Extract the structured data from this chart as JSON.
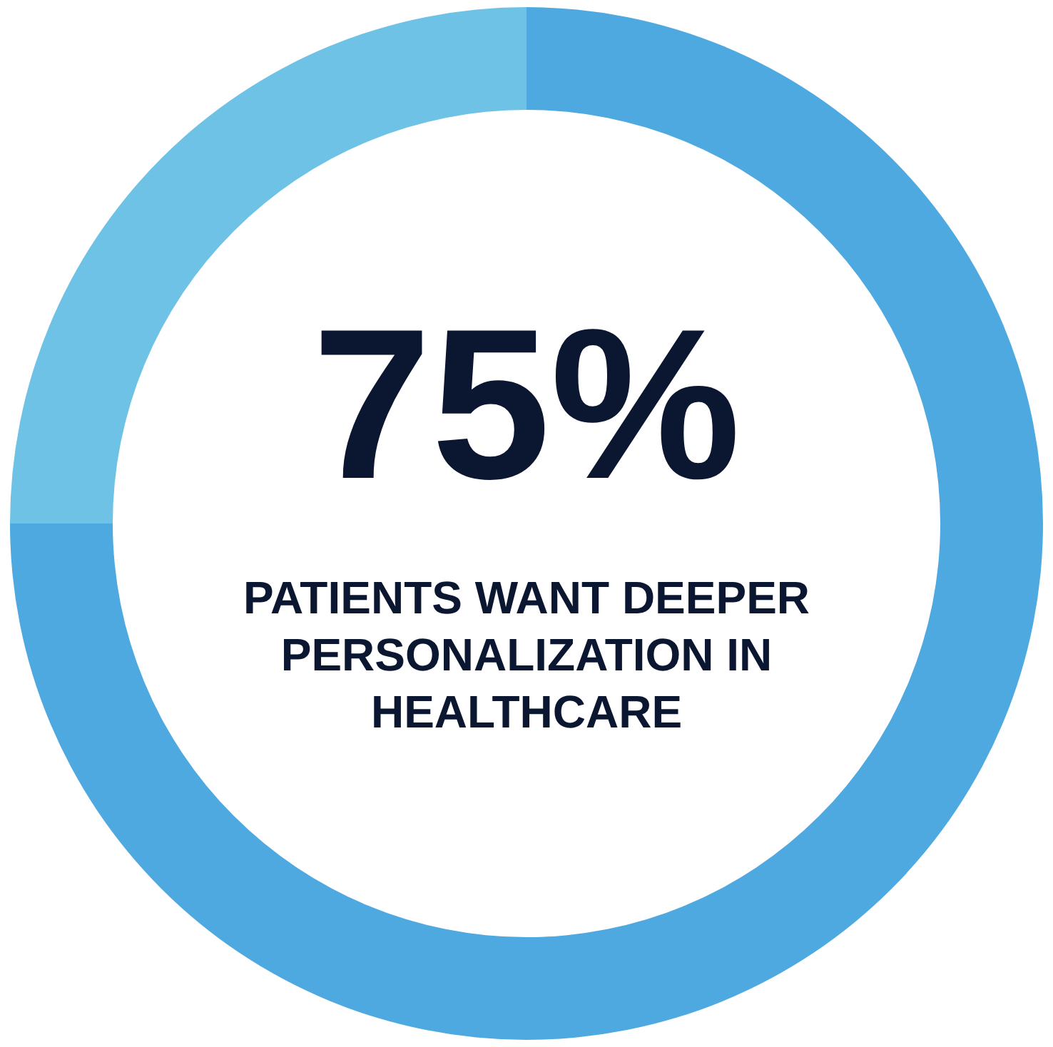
{
  "chart_data": {
    "type": "donut",
    "title": "PATIENTS WANT DEEPER PERSONALIZATION IN HEALTHCARE",
    "categories": [
      null,
      null
    ],
    "values": [
      75,
      25
    ],
    "colors": [
      "#4fa9e1",
      "#6ec2e6"
    ],
    "value_labels": [
      "75%",
      null
    ]
  }
}
